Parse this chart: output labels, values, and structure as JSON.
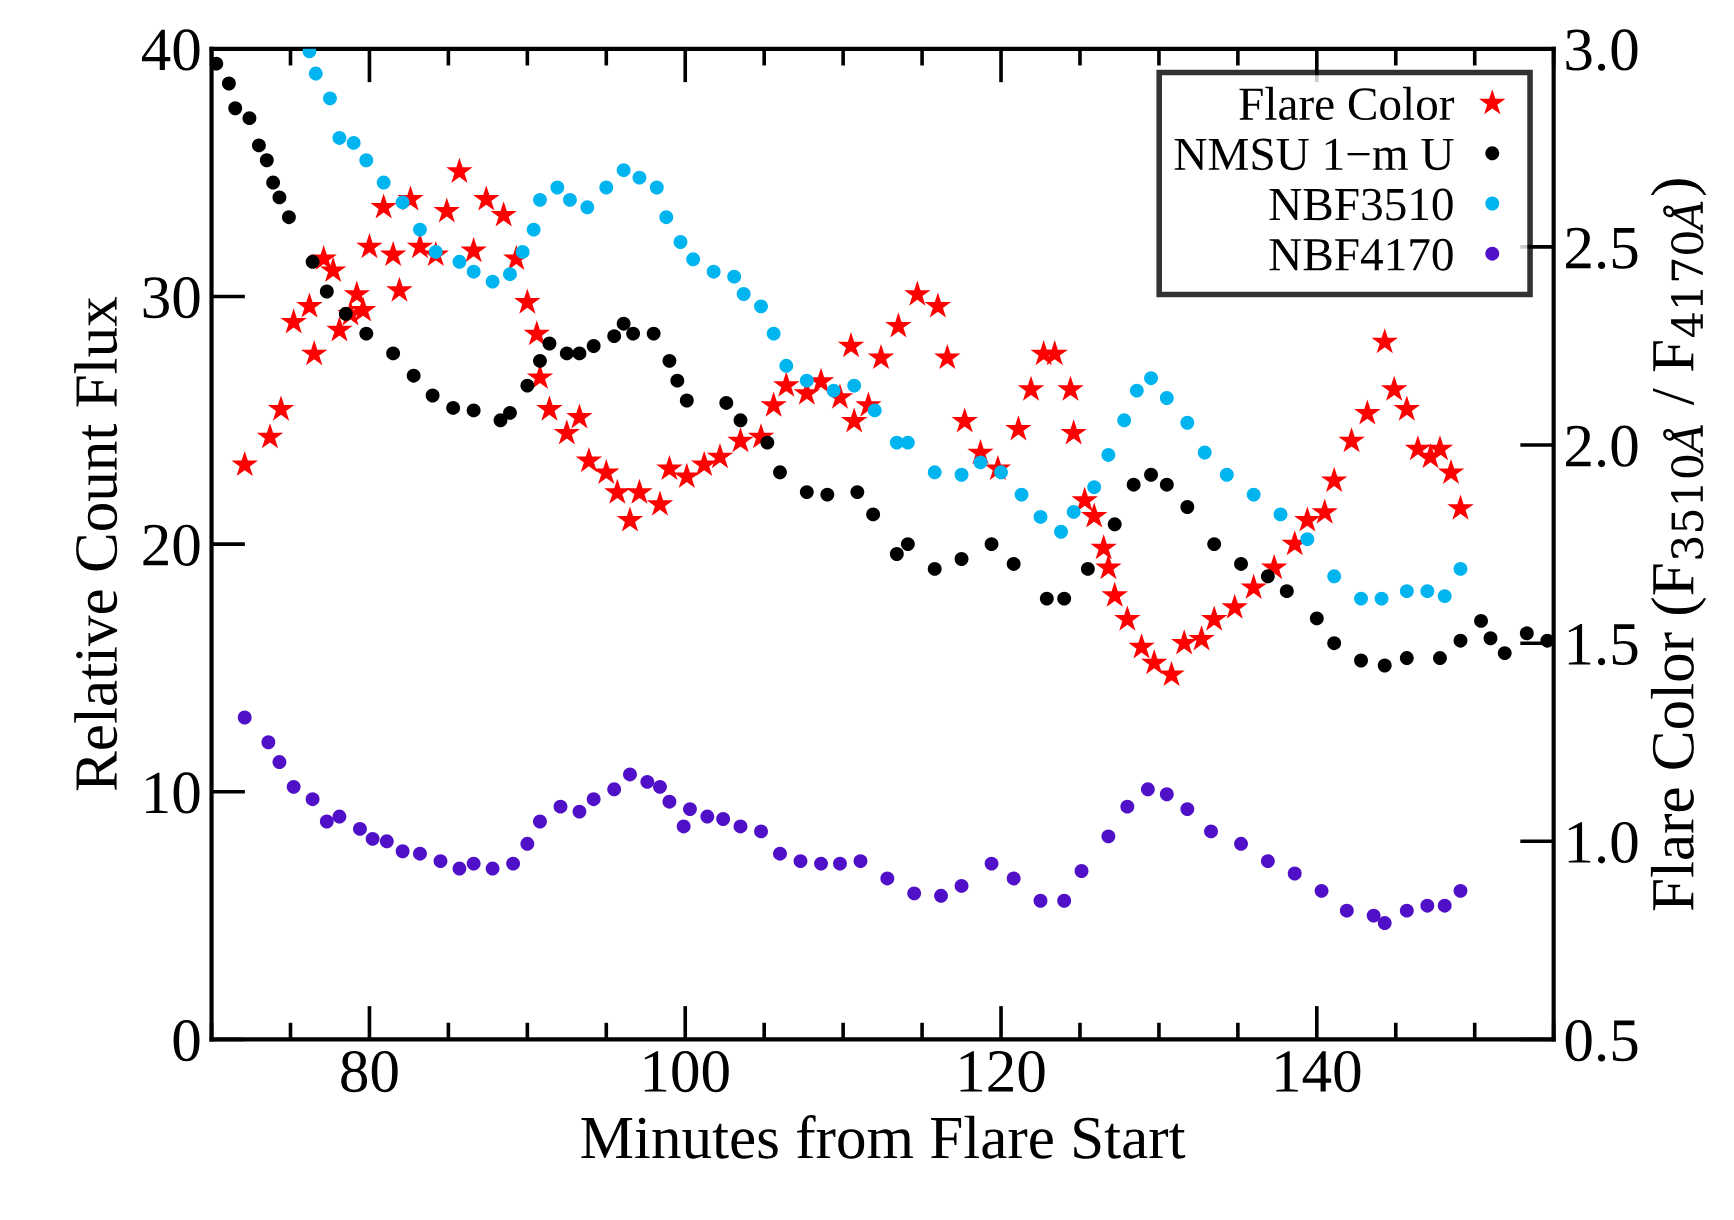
{
  "chart_data": {
    "type": "scatter",
    "xlabel": "Minutes from Flare Start",
    "ylabel": "Relative Count Flux",
    "y2label": "Flare Color (F$_{3510Å}$ / F$_{4170Å}$)",
    "xlim": [
      70,
      155
    ],
    "xticks": [
      80,
      100,
      120,
      140
    ],
    "ylim": [
      0,
      40
    ],
    "yticks": [
      0,
      10,
      20,
      30,
      40
    ],
    "y2lim": [
      0.5,
      3.0
    ],
    "y2ticks": [
      {
        "value": 0.5,
        "label": "0.5"
      },
      {
        "value": 1.0,
        "label": "1.0"
      },
      {
        "value": 1.5,
        "label": "1.5"
      },
      {
        "value": 2.0,
        "label": "2.0"
      },
      {
        "value": 2.5,
        "label": "2.5"
      },
      {
        "value": 3.0,
        "label": "3.0"
      }
    ],
    "legend": "top right",
    "grid": false,
    "series": [
      {
        "name": "Flare Color",
        "color": "#ff0000",
        "axis": "y2",
        "marker": "star",
        "x": [
          72.1,
          73.7,
          74.4,
          75.2,
          76.2,
          76.5,
          77.1,
          77.7,
          78.1,
          78.8,
          79.2,
          79.6,
          80.0,
          80.9,
          81.5,
          81.9,
          82.6,
          83.2,
          84.2,
          84.9,
          85.7,
          86.6,
          87.4,
          88.5,
          89.3,
          90.0,
          90.6,
          90.8,
          91.4,
          92.5,
          93.3,
          93.9,
          95.0,
          95.7,
          96.5,
          97.1,
          98.4,
          99.0,
          100.1,
          101.2,
          102.2,
          103.5,
          104.8,
          105.6,
          106.4,
          107.7,
          108.6,
          109.8,
          110.5,
          110.7,
          111.6,
          112.4,
          113.5,
          114.7,
          116.0,
          116.6,
          117.7,
          118.7,
          119.8,
          121.1,
          121.9,
          122.7,
          123.4,
          124.4,
          124.6,
          125.3,
          125.9,
          126.5,
          126.8,
          127.2,
          128.0,
          128.9,
          129.7,
          130.8,
          131.6,
          132.7,
          133.5,
          134.8,
          136.0,
          137.3,
          138.6,
          139.4,
          140.5,
          141.1,
          142.2,
          143.2,
          144.3,
          144.9,
          145.7,
          146.4,
          147.2,
          147.8,
          148.5,
          149.1
        ],
        "values": [
          1.95,
          2.02,
          2.09,
          2.31,
          2.35,
          2.23,
          2.47,
          2.44,
          2.29,
          2.33,
          2.38,
          2.34,
          2.5,
          2.6,
          2.48,
          2.39,
          2.62,
          2.5,
          2.48,
          2.59,
          2.69,
          2.49,
          2.62,
          2.58,
          2.47,
          2.36,
          2.28,
          2.17,
          2.09,
          2.03,
          2.07,
          1.96,
          1.93,
          1.88,
          1.81,
          1.88,
          1.85,
          1.94,
          1.92,
          1.95,
          1.97,
          2.01,
          2.02,
          2.1,
          2.15,
          2.13,
          2.16,
          2.12,
          2.25,
          2.06,
          2.1,
          2.22,
          2.3,
          2.38,
          2.35,
          2.22,
          2.06,
          1.98,
          1.94,
          2.04,
          2.14,
          2.23,
          2.23,
          2.14,
          2.03,
          1.86,
          1.82,
          1.74,
          1.69,
          1.62,
          1.56,
          1.49,
          1.45,
          1.42,
          1.5,
          1.51,
          1.56,
          1.59,
          1.64,
          1.69,
          1.75,
          1.81,
          1.83,
          1.91,
          2.01,
          2.08,
          2.26,
          2.14,
          2.09,
          1.99,
          1.97,
          1.99,
          1.93,
          1.84
        ]
      },
      {
        "name": "NMSU 1−m U",
        "color": "#000000",
        "marker": "circle",
        "x": [
          70.3,
          71.1,
          71.5,
          72.4,
          73.0,
          73.5,
          73.9,
          74.3,
          74.9,
          76.4,
          77.3,
          78.5,
          79.8,
          81.5,
          82.8,
          84.0,
          85.3,
          86.6,
          88.3,
          88.9,
          90.0,
          90.8,
          91.4,
          92.5,
          93.3,
          94.2,
          95.5,
          96.1,
          96.7,
          98.0,
          99.0,
          99.5,
          100.1,
          102.6,
          103.5,
          105.2,
          106.0,
          107.7,
          109.0,
          110.9,
          111.9,
          113.4,
          114.1,
          115.8,
          117.5,
          119.4,
          120.8,
          122.9,
          124.0,
          125.5,
          127.2,
          128.4,
          129.5,
          130.5,
          131.8,
          133.5,
          135.2,
          136.9,
          138.1,
          140.0,
          141.1,
          142.8,
          144.3,
          145.7,
          147.8,
          149.1,
          150.4,
          151.0,
          151.9,
          153.3,
          154.6
        ],
        "values": [
          39.4,
          38.6,
          37.6,
          37.2,
          36.1,
          35.5,
          34.6,
          34.0,
          33.2,
          31.4,
          30.2,
          29.3,
          28.5,
          27.7,
          26.8,
          26.0,
          25.5,
          25.4,
          25.0,
          25.3,
          26.4,
          27.4,
          28.1,
          27.7,
          27.7,
          28.0,
          28.4,
          28.9,
          28.5,
          28.5,
          27.4,
          26.6,
          25.8,
          25.7,
          25.0,
          24.1,
          22.9,
          22.1,
          22.0,
          22.1,
          21.2,
          19.6,
          20.0,
          19.0,
          19.4,
          20.0,
          19.2,
          17.8,
          17.8,
          19.0,
          20.8,
          22.4,
          22.8,
          22.4,
          21.5,
          20.0,
          19.2,
          18.7,
          18.1,
          17.0,
          16.0,
          15.3,
          15.1,
          15.4,
          15.4,
          16.1,
          16.9,
          16.2,
          15.6,
          16.4,
          16.1
        ]
      },
      {
        "name": "NBF3510",
        "color": "#00b4f0",
        "marker": "circle",
        "x": [
          76.2,
          76.6,
          77.5,
          78.1,
          79.0,
          79.8,
          80.9,
          82.1,
          83.2,
          84.2,
          85.7,
          86.6,
          87.8,
          88.9,
          89.7,
          90.4,
          90.8,
          91.9,
          92.7,
          93.8,
          95.0,
          96.1,
          97.1,
          98.2,
          98.8,
          99.7,
          100.5,
          101.8,
          103.1,
          103.7,
          104.8,
          105.6,
          106.4,
          107.7,
          109.4,
          110.7,
          112.0,
          113.4,
          114.1,
          115.8,
          117.5,
          118.7,
          120.0,
          121.3,
          122.5,
          123.8,
          124.6,
          125.9,
          126.8,
          127.8,
          128.6,
          129.5,
          130.5,
          131.8,
          132.9,
          134.3,
          136.0,
          137.7,
          139.4,
          141.1,
          142.8,
          144.1,
          145.7,
          147.0,
          148.1,
          149.1
        ],
        "values": [
          39.9,
          39.0,
          38.0,
          36.4,
          36.2,
          35.5,
          34.6,
          33.8,
          32.7,
          31.8,
          31.4,
          31.0,
          30.6,
          30.9,
          31.8,
          32.7,
          33.9,
          34.4,
          33.9,
          33.6,
          34.4,
          35.1,
          34.8,
          34.4,
          33.2,
          32.2,
          31.5,
          31.0,
          30.8,
          30.1,
          29.6,
          28.5,
          27.2,
          26.6,
          26.2,
          26.4,
          25.4,
          24.1,
          24.1,
          22.9,
          22.8,
          23.3,
          22.9,
          22.0,
          21.1,
          20.5,
          21.3,
          22.3,
          23.6,
          25.0,
          26.2,
          26.7,
          25.9,
          24.9,
          23.7,
          22.8,
          22.0,
          21.2,
          20.2,
          18.7,
          17.8,
          17.8,
          18.1,
          18.1,
          17.9,
          19.0
        ]
      },
      {
        "name": "NBF4170",
        "color": "#5010c8",
        "marker": "circle",
        "x": [
          72.1,
          73.6,
          74.3,
          75.2,
          76.4,
          77.3,
          78.1,
          79.4,
          80.2,
          81.1,
          82.1,
          83.2,
          84.5,
          85.7,
          86.6,
          87.8,
          89.1,
          90.0,
          90.8,
          92.1,
          93.3,
          94.2,
          95.5,
          96.5,
          97.6,
          98.4,
          99.0,
          99.9,
          100.3,
          101.4,
          102.4,
          103.5,
          104.8,
          106.0,
          107.3,
          108.6,
          109.8,
          111.1,
          112.8,
          114.5,
          116.2,
          117.5,
          119.4,
          120.8,
          122.5,
          124.0,
          125.1,
          126.8,
          128.0,
          129.3,
          130.5,
          131.8,
          133.3,
          135.2,
          136.9,
          138.6,
          140.3,
          141.9,
          143.6,
          144.3,
          145.7,
          147.0,
          148.1,
          149.1
        ],
        "values": [
          13.0,
          12.0,
          11.2,
          10.2,
          9.7,
          8.8,
          9.0,
          8.5,
          8.1,
          8.0,
          7.6,
          7.5,
          7.2,
          6.9,
          7.1,
          6.9,
          7.1,
          7.9,
          8.8,
          9.4,
          9.2,
          9.7,
          10.1,
          10.7,
          10.4,
          10.2,
          9.6,
          8.6,
          9.3,
          9.0,
          8.9,
          8.6,
          8.4,
          7.5,
          7.2,
          7.1,
          7.1,
          7.2,
          6.5,
          5.9,
          5.8,
          6.2,
          7.1,
          6.5,
          5.6,
          5.6,
          6.8,
          8.2,
          9.4,
          10.1,
          9.9,
          9.3,
          8.4,
          7.9,
          7.2,
          6.7,
          6.0,
          5.2,
          5.0,
          4.7,
          5.2,
          5.4,
          5.4,
          6.0
        ]
      }
    ]
  }
}
